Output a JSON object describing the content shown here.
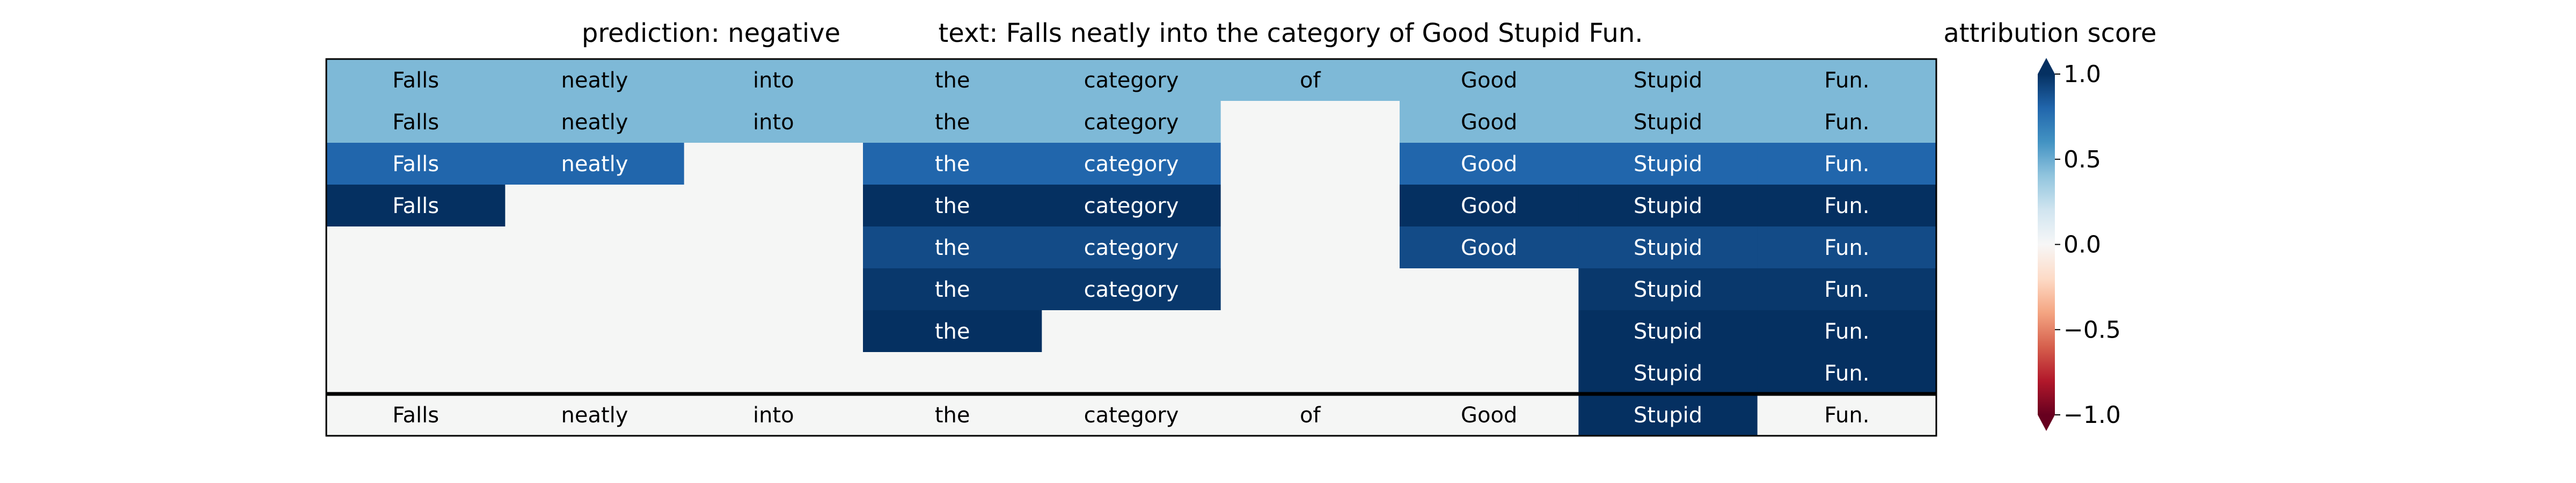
{
  "chart_data": {
    "type": "heatmap",
    "title_left": "prediction:  negative",
    "title_right": "text:  Falls neatly into the category of Good Stupid Fun.",
    "tokens": [
      "Falls",
      "neatly",
      "into",
      "the",
      "category",
      "of",
      "Good",
      "Stupid",
      "Fun."
    ],
    "rows": [
      [
        0.45,
        0.45,
        0.45,
        0.45,
        0.45,
        0.45,
        0.45,
        0.45,
        0.45
      ],
      [
        0.45,
        0.45,
        0.45,
        0.45,
        0.45,
        null,
        0.45,
        0.45,
        0.45
      ],
      [
        0.8,
        0.8,
        null,
        0.8,
        0.8,
        null,
        0.8,
        0.8,
        0.8
      ],
      [
        1.0,
        null,
        null,
        1.0,
        1.0,
        null,
        1.0,
        1.0,
        1.0
      ],
      [
        null,
        null,
        null,
        0.9,
        0.9,
        null,
        0.9,
        0.9,
        0.9
      ],
      [
        null,
        null,
        null,
        0.97,
        0.97,
        null,
        null,
        0.97,
        0.97
      ],
      [
        null,
        null,
        null,
        1.0,
        null,
        null,
        null,
        1.0,
        1.0
      ],
      [
        null,
        null,
        null,
        null,
        null,
        null,
        null,
        1.0,
        1.0
      ]
    ],
    "summary_row": [
      0.0,
      0.0,
      0.0,
      0.0,
      0.0,
      0.0,
      0.0,
      1.0,
      0.0
    ],
    "colorbar": {
      "label": "attribution score",
      "range": [
        -1.0,
        1.0
      ],
      "ticks": [
        1.0,
        0.5,
        0.0,
        -0.5,
        -1.0
      ],
      "tick_labels": [
        "1.0",
        "0.5",
        "0.0",
        "−0.5",
        "−1.0"
      ],
      "colormap": "RdBu",
      "extend": "both"
    },
    "colors": {
      "empty_cell": "#f5f6f5",
      "border": "#000000"
    }
  }
}
